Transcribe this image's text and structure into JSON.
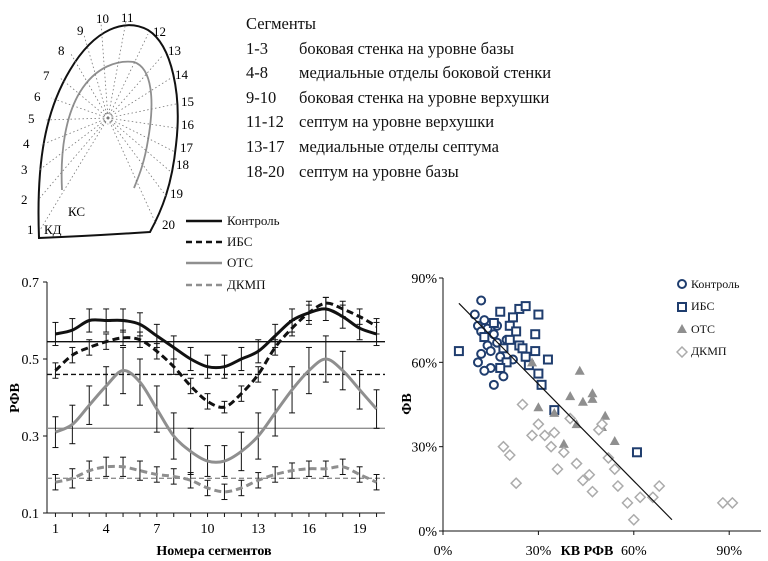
{
  "segments": {
    "title": "Сегменты",
    "rows": [
      {
        "range": "1-3",
        "text": "боковая стенка на уровне базы"
      },
      {
        "range": "4-8",
        "text": "медиальные отделы боковой стенки"
      },
      {
        "range": "9-10",
        "text": "боковая стенка на уровне верхушки"
      },
      {
        "range": "11-12",
        "text": "септум на уровне верхушки"
      },
      {
        "range": "13-17",
        "text": "медиальные отделы септума"
      },
      {
        "range": "18-20",
        "text": "септум на уровне базы"
      }
    ]
  },
  "diagram": {
    "numbers": [
      "1",
      "2",
      "3",
      "4",
      "5",
      "6",
      "7",
      "8",
      "9",
      "10",
      "11",
      "12",
      "13",
      "14",
      "15",
      "16",
      "17",
      "18",
      "19",
      "20"
    ],
    "ks_label": "КС",
    "kd_label": "КД"
  },
  "legend_left": [
    "Контроль",
    "ИБС",
    "ОТС",
    "ДКМП"
  ],
  "legend_right": [
    "Контроль",
    "ИБС",
    "ОТС",
    "ДКМП"
  ],
  "colors": {
    "navy": "#1f3d6e",
    "gray": "#8f8f8f",
    "black": "#111111",
    "lightgray": "#ababab"
  },
  "chart_data": [
    {
      "type": "line",
      "ylabel": "РФВ",
      "xlabel": "Номера сегментов",
      "ylim": [
        0.1,
        0.7
      ],
      "xlim": [
        0.5,
        20.5
      ],
      "yticks": [
        "0.1",
        "0.3",
        "0.5",
        "0.7"
      ],
      "ytick_values": [
        0.1,
        0.3,
        0.5,
        0.7
      ],
      "xticks": [
        "1",
        "4",
        "7",
        "10",
        "13",
        "16",
        "19"
      ],
      "xtick_values": [
        1,
        4,
        7,
        10,
        13,
        16,
        19
      ],
      "x": [
        1,
        2,
        3,
        4,
        5,
        6,
        7,
        8,
        9,
        10,
        11,
        12,
        13,
        14,
        15,
        16,
        17,
        18,
        19,
        20
      ],
      "series": [
        {
          "name": "Контроль",
          "style": "solid",
          "color": "#111111",
          "values": [
            0.565,
            0.575,
            0.6,
            0.6,
            0.6,
            0.59,
            0.56,
            0.53,
            0.5,
            0.48,
            0.48,
            0.5,
            0.52,
            0.56,
            0.6,
            0.62,
            0.63,
            0.61,
            0.58,
            0.565
          ],
          "err": [
            0.03,
            0.03,
            0.03,
            0.03,
            0.03,
            0.03,
            0.03,
            0.03,
            0.03,
            0.03,
            0.03,
            0.03,
            0.03,
            0.03,
            0.03,
            0.03,
            0.03,
            0.03,
            0.03,
            0.03
          ],
          "mean": 0.545
        },
        {
          "name": "ИБС",
          "style": "dashed",
          "color": "#111111",
          "values": [
            0.47,
            0.51,
            0.53,
            0.545,
            0.555,
            0.55,
            0.52,
            0.48,
            0.43,
            0.39,
            0.375,
            0.41,
            0.46,
            0.53,
            0.58,
            0.62,
            0.645,
            0.63,
            0.61,
            0.585
          ],
          "err": [
            0.02,
            0.02,
            0.02,
            0.02,
            0.02,
            0.02,
            0.02,
            0.02,
            0.02,
            0.02,
            0.015,
            0.02,
            0.02,
            0.02,
            0.02,
            0.02,
            0.015,
            0.02,
            0.02,
            0.02
          ],
          "mean": 0.46
        },
        {
          "name": "ОТС",
          "style": "solid",
          "color": "#8f8f8f",
          "values": [
            0.31,
            0.33,
            0.38,
            0.43,
            0.47,
            0.44,
            0.37,
            0.3,
            0.26,
            0.235,
            0.235,
            0.26,
            0.3,
            0.36,
            0.42,
            0.47,
            0.5,
            0.47,
            0.42,
            0.37
          ],
          "err": [
            0.04,
            0.05,
            0.05,
            0.05,
            0.06,
            0.06,
            0.06,
            0.06,
            0.06,
            0.04,
            0.04,
            0.05,
            0.06,
            0.06,
            0.06,
            0.06,
            0.06,
            0.05,
            0.05,
            0.05
          ],
          "mean": 0.32
        },
        {
          "name": "ДКМП",
          "style": "dashed",
          "color": "#8f8f8f",
          "values": [
            0.18,
            0.19,
            0.21,
            0.22,
            0.22,
            0.21,
            0.2,
            0.195,
            0.185,
            0.165,
            0.155,
            0.165,
            0.185,
            0.2,
            0.21,
            0.215,
            0.215,
            0.22,
            0.2,
            0.18
          ],
          "err": [
            0.02,
            0.025,
            0.025,
            0.025,
            0.025,
            0.025,
            0.02,
            0.02,
            0.02,
            0.02,
            0.02,
            0.02,
            0.02,
            0.02,
            0.02,
            0.02,
            0.02,
            0.02,
            0.02,
            0.02
          ],
          "mean": 0.19
        }
      ]
    },
    {
      "type": "scatter",
      "xlabel": "КВ РФВ",
      "ylabel": "ФВ",
      "xlim": [
        0,
        1
      ],
      "ylim": [
        0,
        90
      ],
      "xticks": [
        "0%",
        "30%",
        "60%",
        "90%"
      ],
      "xtick_values": [
        0,
        0.3,
        0.6,
        0.9
      ],
      "yticks": [
        "0%",
        "30%",
        "60%",
        "90%"
      ],
      "ytick_values": [
        0,
        30,
        60,
        90
      ],
      "trendline": {
        "x": [
          0.05,
          0.72
        ],
        "y": [
          81,
          4
        ]
      },
      "series": [
        {
          "name": "Контроль",
          "marker": "circle",
          "color": "#1f3d6e",
          "points": [
            [
              0.1,
              77
            ],
            [
              0.11,
              73
            ],
            [
              0.12,
              82
            ],
            [
              0.13,
              75
            ],
            [
              0.14,
              72
            ],
            [
              0.16,
              70
            ],
            [
              0.17,
              67
            ],
            [
              0.18,
              62
            ],
            [
              0.12,
              63
            ],
            [
              0.11,
              60
            ],
            [
              0.15,
              58
            ],
            [
              0.19,
              55
            ],
            [
              0.16,
              52
            ],
            [
              0.14,
              66
            ],
            [
              0.17,
              73
            ],
            [
              0.2,
              68
            ],
            [
              0.13,
              57
            ],
            [
              0.15,
              64
            ],
            [
              0.22,
              61
            ],
            [
              0.12,
              71
            ]
          ]
        },
        {
          "name": "ИБС",
          "marker": "square",
          "color": "#1f3d6e",
          "points": [
            [
              0.05,
              64
            ],
            [
              0.13,
              69
            ],
            [
              0.18,
              78
            ],
            [
              0.21,
              73
            ],
            [
              0.24,
              79
            ],
            [
              0.26,
              80
            ],
            [
              0.23,
              71
            ],
            [
              0.21,
              68
            ],
            [
              0.26,
              62
            ],
            [
              0.29,
              70
            ],
            [
              0.3,
              77
            ],
            [
              0.27,
              59
            ],
            [
              0.3,
              56
            ],
            [
              0.33,
              61
            ],
            [
              0.16,
              74
            ],
            [
              0.19,
              65
            ],
            [
              0.2,
              60
            ],
            [
              0.24,
              66
            ],
            [
              0.29,
              64
            ],
            [
              0.35,
              43
            ],
            [
              0.31,
              52
            ],
            [
              0.61,
              28
            ],
            [
              0.22,
              76
            ],
            [
              0.18,
              58
            ],
            [
              0.25,
              65
            ]
          ]
        },
        {
          "name": "ОТС",
          "marker": "triangle",
          "color": "#8f8f8f",
          "points": [
            [
              0.3,
              44
            ],
            [
              0.4,
              48
            ],
            [
              0.43,
              57
            ],
            [
              0.47,
              49
            ],
            [
              0.5,
              37
            ],
            [
              0.51,
              41
            ],
            [
              0.47,
              47
            ],
            [
              0.44,
              46
            ],
            [
              0.38,
              31
            ],
            [
              0.42,
              38
            ],
            [
              0.35,
              42
            ],
            [
              0.54,
              32
            ],
            [
              0.28,
              60
            ]
          ]
        },
        {
          "name": "ДКМП",
          "marker": "diamond",
          "color": "#ababab",
          "points": [
            [
              0.19,
              30
            ],
            [
              0.21,
              27
            ],
            [
              0.23,
              17
            ],
            [
              0.25,
              45
            ],
            [
              0.28,
              34
            ],
            [
              0.3,
              38
            ],
            [
              0.32,
              34
            ],
            [
              0.34,
              30
            ],
            [
              0.36,
              22
            ],
            [
              0.38,
              28
            ],
            [
              0.4,
              40
            ],
            [
              0.42,
              24
            ],
            [
              0.44,
              18
            ],
            [
              0.47,
              14
            ],
            [
              0.49,
              36
            ],
            [
              0.5,
              38
            ],
            [
              0.52,
              26
            ],
            [
              0.54,
              22
            ],
            [
              0.55,
              16
            ],
            [
              0.58,
              10
            ],
            [
              0.6,
              4
            ],
            [
              0.62,
              12
            ],
            [
              0.66,
              12
            ],
            [
              0.68,
              16
            ],
            [
              0.88,
              10
            ],
            [
              0.91,
              10
            ],
            [
              0.35,
              35
            ],
            [
              0.46,
              20
            ]
          ]
        }
      ]
    }
  ]
}
